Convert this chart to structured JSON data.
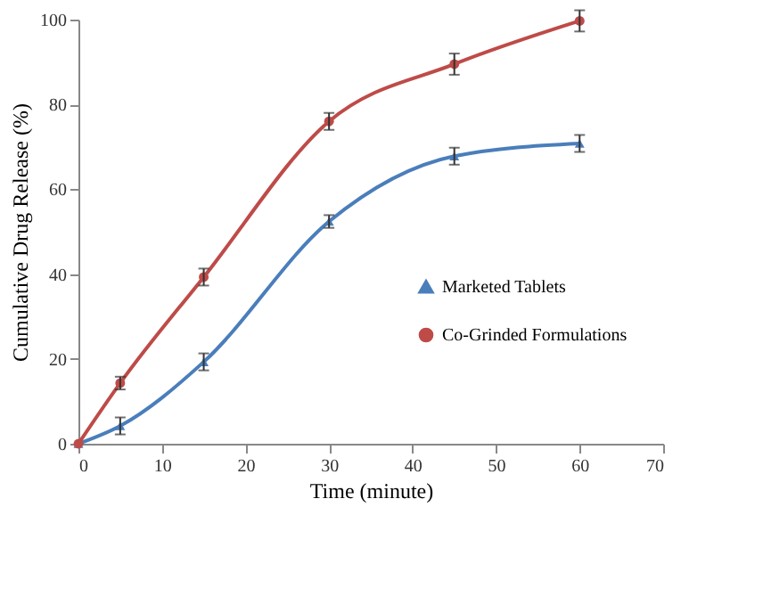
{
  "chart_data": {
    "type": "line",
    "xlabel": "Time (minute)",
    "ylabel": "Cumulative Drug Release (%)",
    "x": [
      0,
      5,
      15,
      30,
      45,
      60
    ],
    "series": [
      {
        "name": "Marketed Tablets",
        "color": "#4a7ebb",
        "marker": "triangle",
        "values": [
          0,
          4.2,
          19.3,
          52.4,
          67.8,
          70.8
        ],
        "errors": [
          null,
          2,
          2,
          1.5,
          2,
          2
        ]
      },
      {
        "name": "Co-Grinded Formulations",
        "color": "#be4b48",
        "marker": "circle",
        "values": [
          0,
          14.3,
          39.3,
          76,
          89.5,
          99.7
        ],
        "errors": [
          null,
          1.5,
          2,
          2,
          2.5,
          2.5
        ]
      }
    ],
    "xlim": [
      0,
      70
    ],
    "xticks": [
      0,
      10,
      20,
      30,
      40,
      50,
      60,
      70
    ],
    "ylim": [
      0,
      100
    ],
    "yticks": [
      0,
      20,
      40,
      60,
      80,
      100
    ],
    "grid": false,
    "legend": "right",
    "line_style": "solid"
  }
}
